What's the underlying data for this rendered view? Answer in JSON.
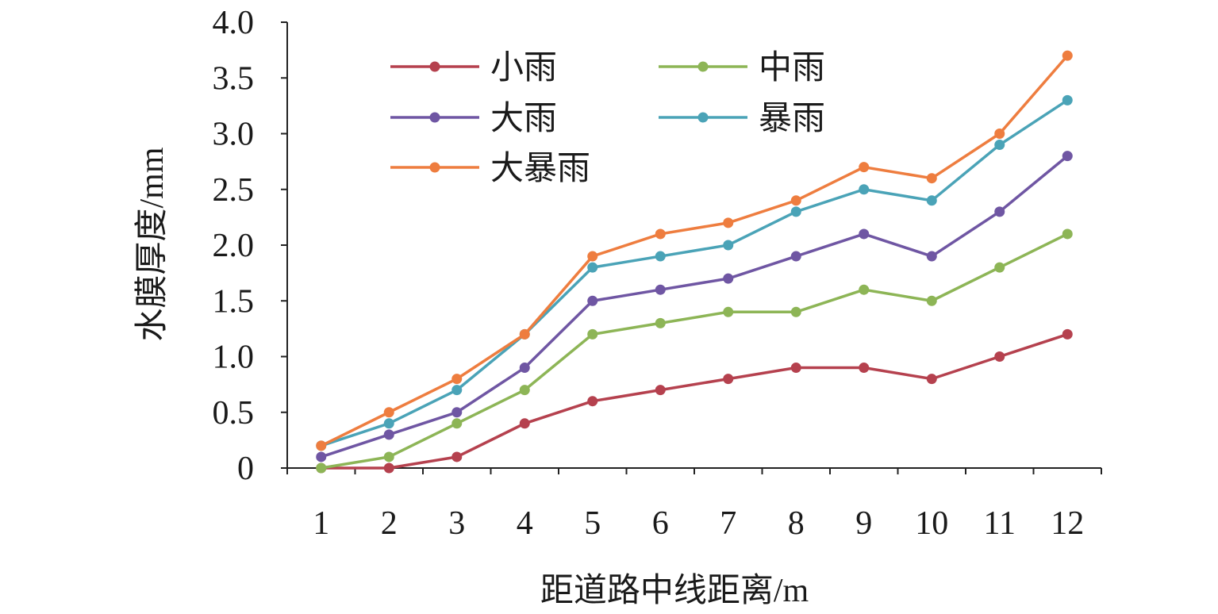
{
  "chart_data": {
    "type": "line",
    "title": "",
    "xlabel": "距道路中线距离/m",
    "ylabel": "水膜厚度/mm",
    "categories": [
      "1",
      "2",
      "3",
      "4",
      "5",
      "6",
      "7",
      "8",
      "9",
      "10",
      "11",
      "12"
    ],
    "ylim": [
      0,
      4.0
    ],
    "yticks": [
      "0",
      "0.5",
      "1.0",
      "1.5",
      "2.0",
      "2.5",
      "3.0",
      "3.5",
      "4.0"
    ],
    "ytick_values": [
      0,
      0.5,
      1.0,
      1.5,
      2.0,
      2.5,
      3.0,
      3.5,
      4.0
    ],
    "grid": false,
    "legend_position": "top-left",
    "series": [
      {
        "name": "小雨",
        "color": "#b5414e",
        "values": [
          0,
          0,
          0.1,
          0.4,
          0.6,
          0.7,
          0.8,
          0.9,
          0.9,
          0.8,
          1.0,
          1.2
        ]
      },
      {
        "name": "中雨",
        "color": "#8db556",
        "values": [
          0,
          0.1,
          0.4,
          0.7,
          1.2,
          1.3,
          1.4,
          1.4,
          1.6,
          1.5,
          1.8,
          2.1
        ]
      },
      {
        "name": "大雨",
        "color": "#6f56a3",
        "values": [
          0.1,
          0.3,
          0.5,
          0.9,
          1.5,
          1.6,
          1.7,
          1.9,
          2.1,
          1.9,
          2.3,
          2.8
        ]
      },
      {
        "name": "暴雨",
        "color": "#4aa3b7",
        "values": [
          0.2,
          0.4,
          0.7,
          1.2,
          1.8,
          1.9,
          2.0,
          2.3,
          2.5,
          2.4,
          2.9,
          3.3
        ]
      },
      {
        "name": "大暴雨",
        "color": "#ee7d3f",
        "values": [
          0.2,
          0.5,
          0.8,
          1.2,
          1.9,
          2.1,
          2.2,
          2.4,
          2.7,
          2.6,
          3.0,
          3.7
        ]
      }
    ]
  }
}
